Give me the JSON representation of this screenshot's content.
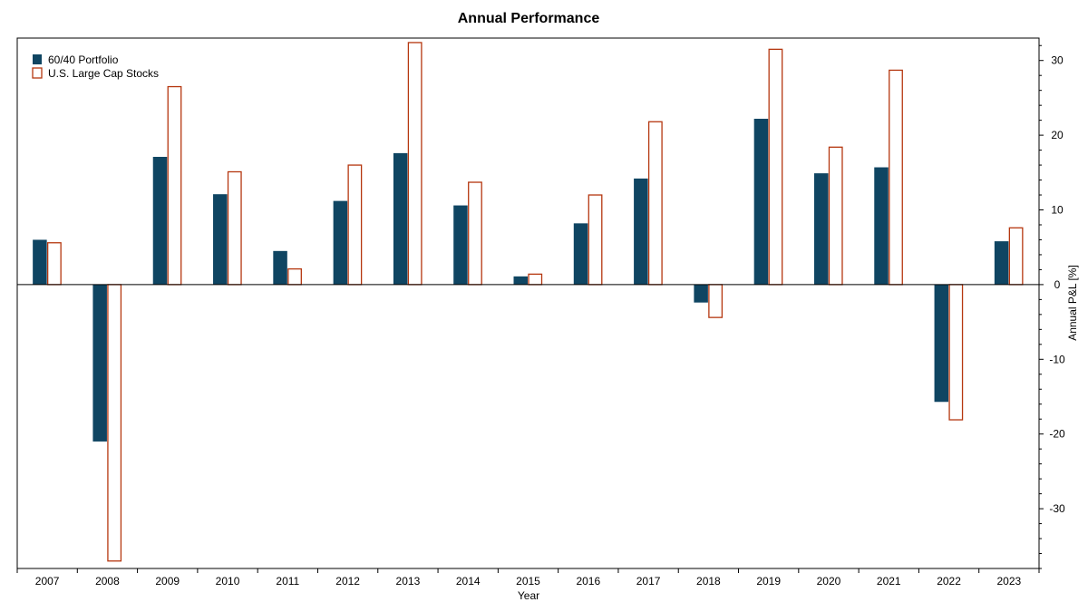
{
  "chart_data": {
    "type": "bar",
    "title": "Annual Performance",
    "xlabel": "Year",
    "ylabel": "Annual P&L [%]",
    "ylim": [
      -38,
      33
    ],
    "yticks": [
      -30,
      -20,
      -10,
      0,
      10,
      20,
      30
    ],
    "y_axis_side": "right",
    "grid": false,
    "legend_position": "top-left",
    "categories": [
      "2007",
      "2008",
      "2009",
      "2010",
      "2011",
      "2012",
      "2013",
      "2014",
      "2015",
      "2016",
      "2017",
      "2018",
      "2019",
      "2020",
      "2021",
      "2022",
      "2023"
    ],
    "series": [
      {
        "name": "60/40 Portfolio",
        "style": "filled",
        "color": "#0f4562",
        "values": [
          6.0,
          -21.0,
          17.1,
          12.1,
          4.5,
          11.2,
          17.6,
          10.6,
          1.1,
          8.2,
          14.2,
          -2.4,
          22.2,
          14.9,
          15.7,
          -15.7,
          5.8
        ]
      },
      {
        "name": "U.S. Large Cap Stocks",
        "style": "outline",
        "color": "#b5370f",
        "values": [
          5.6,
          -37.0,
          26.5,
          15.1,
          2.1,
          16.0,
          32.4,
          13.7,
          1.4,
          12.0,
          21.8,
          -4.4,
          31.5,
          18.4,
          28.7,
          -18.1,
          7.6
        ]
      }
    ]
  }
}
